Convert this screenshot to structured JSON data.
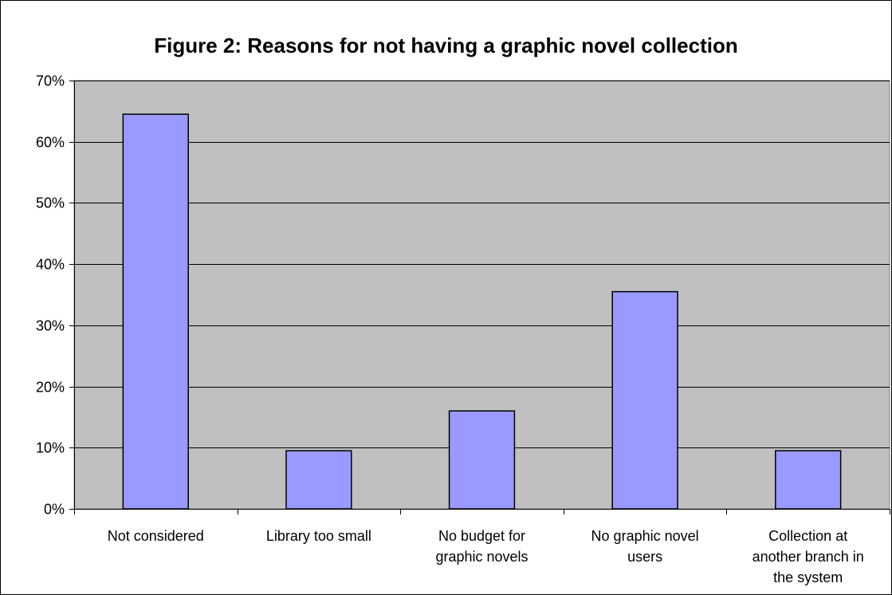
{
  "chart_data": {
    "type": "bar",
    "title": "Figure 2: Reasons for not having a graphic novel collection",
    "categories": [
      [
        "Not considered"
      ],
      [
        "Library too small"
      ],
      [
        "No budget for",
        "graphic novels"
      ],
      [
        "No graphic novel",
        "users"
      ],
      [
        "Collection at",
        "another branch in",
        "the system"
      ]
    ],
    "values": [
      0.645,
      0.095,
      0.16,
      0.355,
      0.095
    ],
    "ylim": [
      0,
      0.7
    ],
    "yticks": [
      "0%",
      "10%",
      "20%",
      "30%",
      "40%",
      "50%",
      "60%",
      "70%"
    ],
    "xlabel": "",
    "ylabel": "",
    "grid": true,
    "legend": "none",
    "colors": {
      "bar_fill": "#9999ff",
      "bar_stroke": "#000000",
      "plot_background": "#c0c0c0",
      "gridline": "#000000"
    }
  }
}
